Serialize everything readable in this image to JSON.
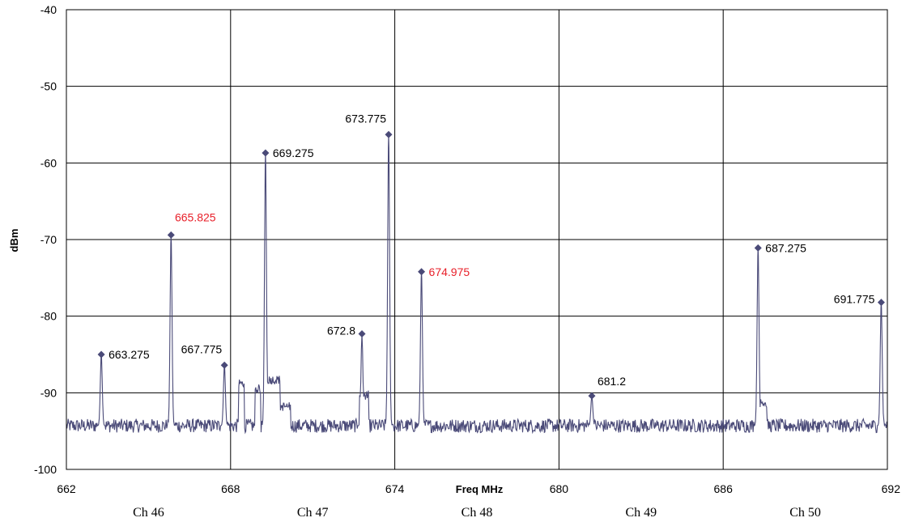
{
  "chart_data": {
    "type": "line",
    "title": "",
    "xlabel": "Freq MHz",
    "ylabel": "dBm",
    "xlim": [
      662,
      692
    ],
    "ylim": [
      -100,
      -40
    ],
    "x_ticks": [
      662,
      668,
      674,
      680,
      686,
      692
    ],
    "y_ticks": [
      -40,
      -50,
      -60,
      -70,
      -80,
      -90,
      -100
    ],
    "x_tick_labels": [
      "662",
      "668",
      "674",
      "680",
      "686",
      "692"
    ],
    "y_tick_labels": [
      "-40",
      "-50",
      "-60",
      "-70",
      "-80",
      "-90",
      "-100"
    ],
    "grid": true,
    "line_color": "#4a4a78",
    "noise_floor_dbm": -94.3,
    "channels": [
      {
        "label": "Ch 46",
        "center_mhz": 665
      },
      {
        "label": "Ch 47",
        "center_mhz": 671
      },
      {
        "label": "Ch 48",
        "center_mhz": 677
      },
      {
        "label": "Ch 49",
        "center_mhz": 683
      },
      {
        "label": "Ch 50",
        "center_mhz": 689
      }
    ],
    "peaks": [
      {
        "freq": 663.275,
        "dbm": -85.0,
        "label": "663.275",
        "color": "#000000",
        "label_pos": "right"
      },
      {
        "freq": 665.825,
        "dbm": -69.4,
        "label": "665.825",
        "color": "#e8202a",
        "label_pos": "above"
      },
      {
        "freq": 667.775,
        "dbm": -86.4,
        "label": "667.775",
        "color": "#000000",
        "label_pos": "above-left"
      },
      {
        "freq": 669.275,
        "dbm": -58.7,
        "label": "669.275",
        "color": "#000000",
        "label_pos": "right"
      },
      {
        "freq": 672.8,
        "dbm": -82.3,
        "label": "672.8",
        "color": "#000000",
        "label_pos": "left"
      },
      {
        "freq": 673.775,
        "dbm": -56.3,
        "label": "673.775",
        "color": "#000000",
        "label_pos": "above-left"
      },
      {
        "freq": 674.975,
        "dbm": -74.2,
        "label": "674.975",
        "color": "#e8202a",
        "label_pos": "right"
      },
      {
        "freq": 681.2,
        "dbm": -90.4,
        "label": "681.2",
        "color": "#000000",
        "label_pos": "above-right"
      },
      {
        "freq": 687.275,
        "dbm": -71.1,
        "label": "687.275",
        "color": "#000000",
        "label_pos": "right"
      },
      {
        "freq": 691.775,
        "dbm": -78.2,
        "label": "691.775",
        "color": "#000000",
        "label_pos": "left"
      }
    ],
    "spectrum_features": [
      {
        "from": 668.3,
        "to": 668.5,
        "dbm": -88.8
      },
      {
        "from": 669.35,
        "to": 669.8,
        "dbm": -88.3
      },
      {
        "from": 668.9,
        "to": 669.1,
        "dbm": -89.5
      },
      {
        "from": 672.7,
        "to": 672.85,
        "dbm": -90.8
      },
      {
        "from": 672.85,
        "to": 673.05,
        "dbm": -90.3
      },
      {
        "from": 669.8,
        "to": 670.2,
        "dbm": -91.8
      },
      {
        "from": 687.35,
        "to": 687.6,
        "dbm": -91.3
      }
    ]
  }
}
